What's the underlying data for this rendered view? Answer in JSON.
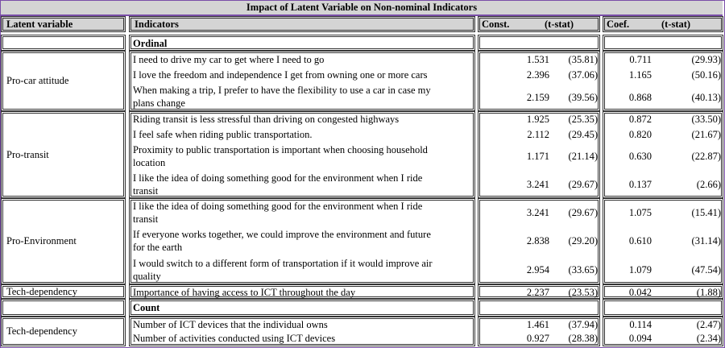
{
  "title": "Impact of Latent Variable on Non-nominal Indicators",
  "headers": {
    "latent": "Latent variable",
    "indicators": "Indicators",
    "const": "Const.",
    "tstat1": "(t-stat)",
    "coef": "Coef.",
    "tstat2": "(t-stat)"
  },
  "sections": {
    "ordinal": "Ordinal",
    "count": "Count"
  },
  "groups": {
    "pro_car": "Pro-car attitude",
    "pro_transit": "Pro-transit",
    "pro_env": "Pro-Environment",
    "tech1": "Tech-dependency",
    "tech2": "Tech-dependency"
  },
  "rows": [
    {
      "l1": "I need to drive my car to get where I need to go",
      "l2": "",
      "const": "1.531",
      "t1": "(35.81)",
      "coef": "0.711",
      "t2": "(29.93)"
    },
    {
      "l1": "I love the freedom and independence I get from owning one or more cars",
      "l2": "",
      "const": "2.396",
      "t1": "(37.06)",
      "coef": "1.165",
      "t2": "(50.16)"
    },
    {
      "l1": "When making a trip, I prefer to have the flexibility to use a car in case my",
      "l2": "plans change",
      "const": "2.159",
      "t1": "(39.56)",
      "coef": "0.868",
      "t2": "(40.13)"
    },
    {
      "l1": "Riding transit is less stressful than driving on congested highways",
      "l2": "",
      "const": "1.925",
      "t1": "(25.35)",
      "coef": "0.872",
      "t2": "(33.50)"
    },
    {
      "l1": "I feel safe when riding public transportation.",
      "l2": "",
      "const": "2.112",
      "t1": "(29.45)",
      "coef": "0.820",
      "t2": "(21.67)"
    },
    {
      "l1": "Proximity to public transportation is important when choosing household",
      "l2": "location",
      "const": "1.171",
      "t1": "(21.14)",
      "coef": "0.630",
      "t2": "(22.87)"
    },
    {
      "l1": "I like the idea of doing something good for the environment when I ride",
      "l2": "transit",
      "const": "3.241",
      "t1": "(29.67)",
      "coef": "0.137",
      "t2": "(2.66)"
    },
    {
      "l1": "I like the idea of doing something good for the environment when I ride",
      "l2": "transit",
      "const": "3.241",
      "t1": "(29.67)",
      "coef": "1.075",
      "t2": "(15.41)"
    },
    {
      "l1": "If everyone works together, we could improve the environment and future",
      "l2": "for the earth",
      "const": "2.838",
      "t1": "(29.20)",
      "coef": "0.610",
      "t2": "(31.14)"
    },
    {
      "l1": "I would switch to a different form of transportation if it would improve air",
      "l2": "quality",
      "const": "2.954",
      "t1": "(33.65)",
      "coef": "1.079",
      "t2": "(47.54)"
    },
    {
      "l1": "Importance of  having access to ICT throughout the day",
      "l2": "",
      "const": "2.237",
      "t1": "(23.53)",
      "coef": "0.042",
      "t2": "(1.88)"
    },
    {
      "l1": "Number of ICT devices that the individual owns",
      "l2": "",
      "const": "1.461",
      "t1": "(37.94)",
      "coef": "0.114",
      "t2": "(2.47)"
    },
    {
      "l1": "Number of activities conducted using ICT devices",
      "l2": "",
      "const": "0.927",
      "t1": "(28.38)",
      "coef": "0.094",
      "t2": "(2.34)"
    }
  ]
}
